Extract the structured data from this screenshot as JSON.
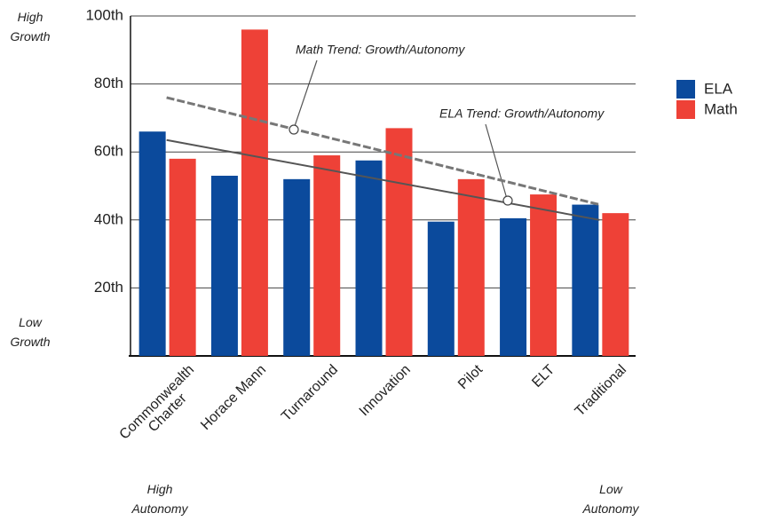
{
  "chart_data": {
    "type": "bar",
    "categories": [
      "Commonwealth\nCharter",
      "Horace Mann",
      "Turnaround",
      "Innovation",
      "Pilot",
      "ELT",
      "Traditional"
    ],
    "series": [
      {
        "name": "ELA",
        "color": "#0b4a9c",
        "values": [
          66,
          53,
          52,
          57.5,
          39.5,
          40.5,
          44.5
        ]
      },
      {
        "name": "Math",
        "color": "#ee4137",
        "values": [
          58,
          96,
          59,
          67,
          52,
          47.5,
          42
        ]
      }
    ],
    "trend_lines": [
      {
        "name": "Math Trend: Growth/Autonomy",
        "values": [
          76,
          44.5
        ],
        "color": "#777777",
        "dashed": true
      },
      {
        "name": "ELA Trend: Growth/Autonomy",
        "values": [
          63.5,
          40
        ],
        "color": "#555555",
        "dashed": false
      }
    ],
    "ylim": [
      0,
      100
    ],
    "yticks": [
      {
        "value": 20,
        "label": "20th"
      },
      {
        "value": 40,
        "label": "40th"
      },
      {
        "value": 60,
        "label": "60th"
      },
      {
        "value": 80,
        "label": "80th"
      },
      {
        "value": 100,
        "label": "100th"
      }
    ],
    "grid": true,
    "y_annotations": {
      "top": "High\nGrowth",
      "bottom": "Low\nGrowth"
    },
    "x_annotations": {
      "left": "High\nAutonomy",
      "right": "Low\nAutonomy"
    }
  }
}
